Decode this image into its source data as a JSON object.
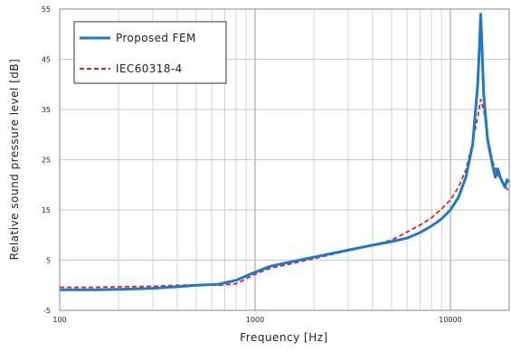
{
  "chart_data": {
    "type": "line",
    "title": "",
    "xlabel": "Frequency [Hz]",
    "ylabel": "Relative sound pressure level [dB]",
    "xscale": "log",
    "xlim": [
      100,
      20000
    ],
    "ylim": [
      -5,
      55
    ],
    "grid": true,
    "legend_position": "top-left",
    "x_ticks": [
      {
        "value": 100,
        "label": "100"
      },
      {
        "value": 1000,
        "label": "1000"
      },
      {
        "value": 10000,
        "label": "10000"
      }
    ],
    "y_ticks": [
      {
        "value": -5,
        "label": "-5"
      },
      {
        "value": 5,
        "label": "5"
      },
      {
        "value": 15,
        "label": "15"
      },
      {
        "value": 25,
        "label": "25"
      },
      {
        "value": 35,
        "label": "35"
      },
      {
        "value": 45,
        "label": "45"
      },
      {
        "value": 55,
        "label": "55"
      }
    ],
    "series": [
      {
        "name": "Proposed FEM",
        "color": "#1f78c8",
        "style": "solid",
        "points": [
          [
            100,
            -0.9
          ],
          [
            150,
            -0.9
          ],
          [
            200,
            -0.8
          ],
          [
            300,
            -0.6
          ],
          [
            400,
            -0.3
          ],
          [
            500,
            0.0
          ],
          [
            650,
            0.2
          ],
          [
            800,
            1.0
          ],
          [
            1000,
            2.6
          ],
          [
            1200,
            3.8
          ],
          [
            1500,
            4.6
          ],
          [
            2000,
            5.6
          ],
          [
            3000,
            7.0
          ],
          [
            4000,
            8.0
          ],
          [
            5000,
            8.7
          ],
          [
            6000,
            9.4
          ],
          [
            7000,
            10.5
          ],
          [
            8000,
            11.8
          ],
          [
            9000,
            13.2
          ],
          [
            10000,
            15.0
          ],
          [
            11000,
            17.5
          ],
          [
            12000,
            21.5
          ],
          [
            13000,
            28.0
          ],
          [
            13800,
            40.0
          ],
          [
            14100,
            48.0
          ],
          [
            14300,
            54.0
          ],
          [
            14500,
            48.0
          ],
          [
            14800,
            38.0
          ],
          [
            15500,
            29.0
          ],
          [
            16500,
            23.5
          ],
          [
            17000,
            21.5
          ],
          [
            17500,
            23.2
          ],
          [
            18000,
            21.5
          ],
          [
            18500,
            20.5
          ],
          [
            19000,
            19.5
          ],
          [
            19500,
            21.0
          ],
          [
            20000,
            20.5
          ]
        ]
      },
      {
        "name": "IEC60318-4",
        "color": "#d62728",
        "style": "dashed",
        "points": [
          [
            100,
            -0.4
          ],
          [
            150,
            -0.4
          ],
          [
            200,
            -0.3
          ],
          [
            300,
            -0.2
          ],
          [
            400,
            0.0
          ],
          [
            500,
            0.1
          ],
          [
            650,
            0.0
          ],
          [
            800,
            0.3
          ],
          [
            1000,
            2.2
          ],
          [
            1200,
            3.4
          ],
          [
            1500,
            4.2
          ],
          [
            2000,
            5.3
          ],
          [
            3000,
            6.9
          ],
          [
            4000,
            8.0
          ],
          [
            5000,
            9.0
          ],
          [
            6000,
            10.6
          ],
          [
            7000,
            12.0
          ],
          [
            8000,
            13.4
          ],
          [
            9000,
            15.2
          ],
          [
            10000,
            17.0
          ],
          [
            11000,
            19.5
          ],
          [
            12000,
            23.0
          ],
          [
            13000,
            28.5
          ],
          [
            13800,
            33.5
          ],
          [
            14300,
            37.0
          ],
          [
            14800,
            35.0
          ],
          [
            15500,
            29.5
          ],
          [
            16500,
            24.5
          ],
          [
            17500,
            22.0
          ],
          [
            18500,
            20.5
          ],
          [
            19500,
            19.2
          ],
          [
            20000,
            18.8
          ]
        ]
      }
    ]
  }
}
